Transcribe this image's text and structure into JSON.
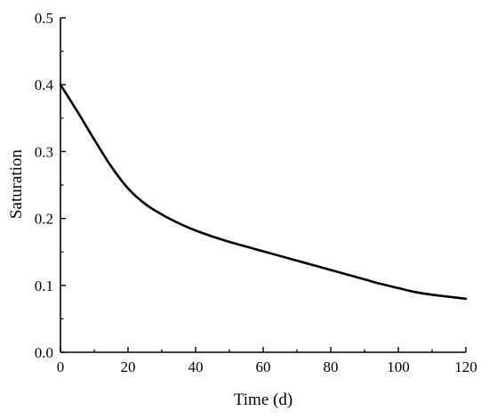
{
  "chart_data": {
    "type": "line",
    "title": "",
    "xlabel": "Time (d)",
    "ylabel": "Saturation",
    "xlim": [
      0,
      120
    ],
    "ylim": [
      0,
      0.5
    ],
    "x_ticks": [
      0,
      20,
      40,
      60,
      80,
      100,
      120
    ],
    "x_tick_labels": [
      "0",
      "20",
      "40",
      "60",
      "80",
      "100",
      "120"
    ],
    "y_ticks": [
      0,
      0.1,
      0.2,
      0.3,
      0.4,
      0.5
    ],
    "y_tick_labels": [
      "0.0",
      "0.1",
      "0.2",
      "0.3",
      "0.4",
      "0.5"
    ],
    "grid": false,
    "line_color": "#000000",
    "series": [
      {
        "x": [
          0,
          5,
          10,
          15,
          20,
          25,
          30,
          35,
          40,
          45,
          50,
          55,
          60,
          65,
          70,
          75,
          80,
          85,
          90,
          95,
          100,
          105,
          110,
          115,
          120
        ],
        "y": [
          0.4,
          0.36,
          0.318,
          0.278,
          0.245,
          0.222,
          0.206,
          0.193,
          0.182,
          0.173,
          0.165,
          0.158,
          0.151,
          0.144,
          0.137,
          0.13,
          0.123,
          0.116,
          0.109,
          0.102,
          0.096,
          0.09,
          0.086,
          0.083,
          0.08
        ]
      }
    ]
  }
}
